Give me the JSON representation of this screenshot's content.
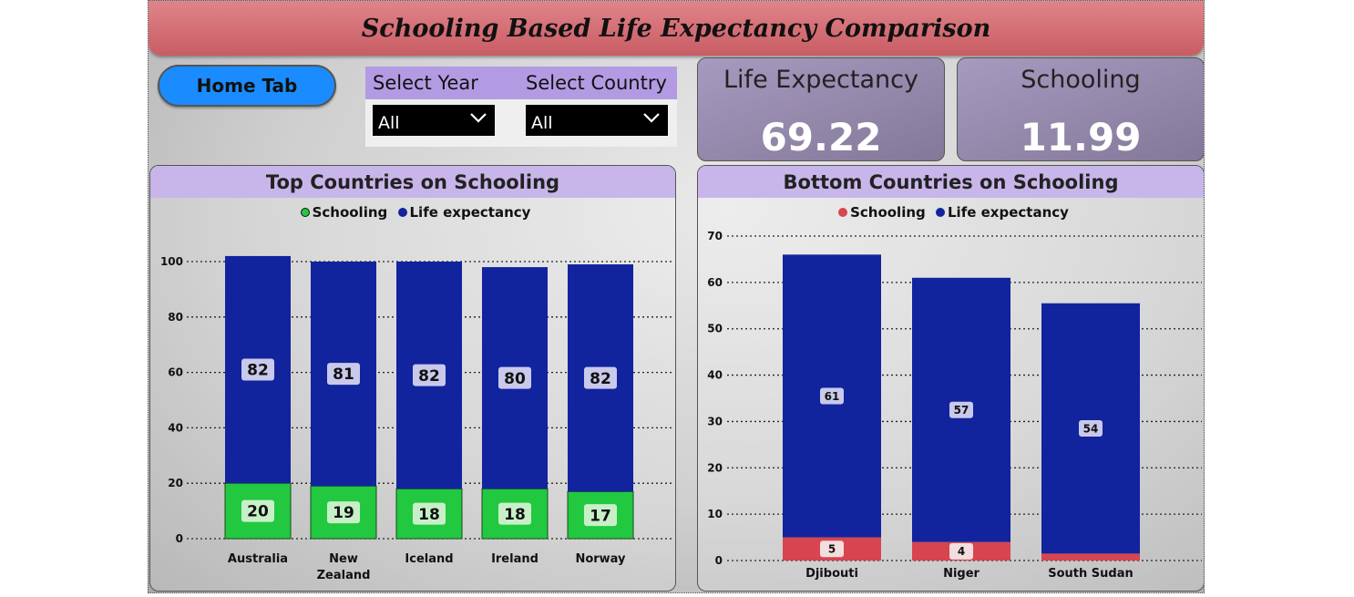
{
  "title": "Schooling Based Life Expectancy Comparison",
  "home_button": "Home Tab",
  "slicers": [
    {
      "label": "Select Year",
      "value": "All"
    },
    {
      "label": "Select Country",
      "value": "All"
    }
  ],
  "kpis": [
    {
      "label": "Life Expectancy",
      "value": "69.22"
    },
    {
      "label": "Schooling",
      "value": "11.99"
    }
  ],
  "colors": {
    "life_expectancy": "#12239e",
    "schooling_top": "#22c840",
    "schooling_bottom": "#d64550",
    "label_bg": "#c9c9eb"
  },
  "chart_data": [
    {
      "type": "bar",
      "stacked": true,
      "title": "Top Countries on Schooling",
      "categories": [
        "Australia",
        "New Zealand",
        "Iceland",
        "Ireland",
        "Norway"
      ],
      "series": [
        {
          "name": "Schooling",
          "values": [
            20,
            19,
            18,
            18,
            17
          ]
        },
        {
          "name": "Life expectancy",
          "values": [
            82,
            81,
            82,
            80,
            82
          ]
        }
      ],
      "data_labels": {
        "Schooling": [
          "20",
          "19",
          "18",
          "18",
          "17"
        ],
        "Life expectancy": [
          "82",
          "81",
          "82",
          "80",
          "82"
        ]
      },
      "ylim": [
        0,
        100
      ],
      "yticks": [
        0,
        20,
        40,
        60,
        80,
        100
      ],
      "grid": true,
      "legend": "top-center"
    },
    {
      "type": "bar",
      "stacked": true,
      "title": "Bottom Countries on Schooling",
      "categories": [
        "Djibouti",
        "Niger",
        "South Sudan"
      ],
      "series": [
        {
          "name": "Schooling",
          "values": [
            5,
            4,
            1.5
          ]
        },
        {
          "name": "Life expectancy",
          "values": [
            61,
            57,
            54
          ]
        }
      ],
      "data_labels": {
        "Schooling": [
          "5",
          "4",
          ""
        ],
        "Life expectancy": [
          "61",
          "57",
          "54"
        ]
      },
      "ylim": [
        0,
        70
      ],
      "yticks": [
        0,
        10,
        20,
        30,
        40,
        50,
        60,
        70
      ],
      "grid": true,
      "legend": "top-center"
    }
  ]
}
